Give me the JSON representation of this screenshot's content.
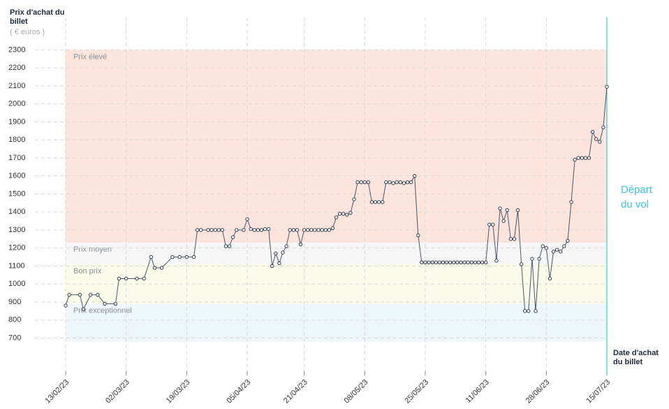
{
  "chart_data": {
    "type": "line",
    "y_axis_title": "Prix d'achat du billet",
    "y_axis_unit": "( € euros )",
    "x_axis_title": "Date d'achat du billet",
    "annotation": "Départ du vol",
    "annotation_x": "15/07/23",
    "annotation_color": "#3ec6e0",
    "bands": [
      {
        "label": "Prix élevé",
        "from": 1230,
        "to": 2300,
        "color": "#fde4dc"
      },
      {
        "label": "Prix moyen",
        "from": 1110,
        "to": 1230,
        "color": "#f6f6f6"
      },
      {
        "label": "Bon prix",
        "from": 890,
        "to": 1110,
        "color": "#fbfbea"
      },
      {
        "label": "Prix exceptionnel",
        "from": 680,
        "to": 890,
        "color": "#eef8fc"
      }
    ],
    "x": [
      "13/02/23",
      "14/02/23",
      "17/02/23",
      "18/02/23",
      "20/02/23",
      "22/02/23",
      "24/02/23",
      "27/02/23",
      "28/02/23",
      "02/03/23",
      "05/03/23",
      "07/03/23",
      "09/03/23",
      "10/03/23",
      "12/03/23",
      "15/03/23",
      "17/03/23",
      "19/03/23",
      "21/03/23",
      "22/03/23",
      "23/03/23",
      "25/03/23",
      "26/03/23",
      "27/03/23",
      "28/03/23",
      "29/03/23",
      "30/03/23",
      "31/03/23",
      "01/04/23",
      "02/04/23",
      "04/04/23",
      "05/04/23",
      "06/04/23",
      "07/04/23",
      "08/04/23",
      "09/04/23",
      "10/04/23",
      "11/04/23",
      "12/04/23",
      "13/04/23",
      "14/04/23",
      "15/04/23",
      "16/04/23",
      "17/04/23",
      "18/04/23",
      "19/04/23",
      "20/04/23",
      "21/04/23",
      "22/04/23",
      "23/04/23",
      "24/04/23",
      "25/04/23",
      "26/04/23",
      "27/04/23",
      "28/04/23",
      "29/04/23",
      "30/04/23",
      "01/05/23",
      "02/05/23",
      "03/05/23",
      "04/05/23",
      "05/05/23",
      "06/05/23",
      "07/05/23",
      "08/05/23",
      "09/05/23",
      "10/05/23",
      "11/05/23",
      "12/05/23",
      "13/05/23",
      "14/05/23",
      "15/05/23",
      "16/05/23",
      "17/05/23",
      "18/05/23",
      "19/05/23",
      "20/05/23",
      "21/05/23",
      "22/05/23",
      "23/05/23",
      "24/05/23",
      "25/05/23",
      "26/05/23",
      "27/05/23",
      "28/05/23",
      "29/05/23",
      "30/05/23",
      "31/05/23",
      "01/06/23",
      "02/06/23",
      "03/06/23",
      "04/06/23",
      "05/06/23",
      "06/06/23",
      "07/06/23",
      "08/06/23",
      "09/06/23",
      "10/06/23",
      "11/06/23",
      "12/06/23",
      "13/06/23",
      "14/06/23",
      "15/06/23",
      "16/06/23",
      "17/06/23",
      "18/06/23",
      "19/06/23",
      "20/06/23",
      "21/06/23",
      "22/06/23",
      "23/06/23",
      "24/06/23",
      "25/06/23",
      "26/06/23",
      "27/06/23",
      "28/06/23",
      "29/06/23",
      "30/06/23",
      "01/07/23",
      "02/07/23",
      "03/07/23",
      "04/07/23",
      "05/07/23",
      "06/07/23",
      "07/07/23",
      "08/07/23",
      "09/07/23",
      "10/07/23",
      "11/07/23",
      "12/07/23",
      "13/07/23",
      "14/07/23",
      "15/07/23"
    ],
    "series": [
      {
        "name": "Prix",
        "color": "#4a5568",
        "values": [
          880,
          940,
          940,
          860,
          940,
          940,
          890,
          890,
          1030,
          1030,
          1030,
          1030,
          1150,
          1090,
          1090,
          1150,
          1150,
          1150,
          1150,
          1300,
          1300,
          1300,
          1300,
          1300,
          1300,
          1300,
          1210,
          1210,
          1260,
          1300,
          1300,
          1360,
          1305,
          1300,
          1300,
          1300,
          1305,
          1305,
          1100,
          1170,
          1115,
          1175,
          1210,
          1300,
          1300,
          1300,
          1220,
          1300,
          1300,
          1300,
          1300,
          1300,
          1300,
          1300,
          1300,
          1310,
          1370,
          1390,
          1390,
          1385,
          1395,
          1470,
          1565,
          1565,
          1565,
          1565,
          1455,
          1455,
          1455,
          1455,
          1565,
          1565,
          1560,
          1565,
          1565,
          1560,
          1565,
          1565,
          1600,
          1270,
          1120,
          1120,
          1120,
          1120,
          1120,
          1120,
          1120,
          1120,
          1120,
          1120,
          1120,
          1120,
          1120,
          1120,
          1120,
          1120,
          1120,
          1120,
          1120,
          1330,
          1330,
          1130,
          1420,
          1350,
          1410,
          1250,
          1250,
          1410,
          1110,
          850,
          850,
          1140,
          850,
          1140,
          1210,
          1200,
          1030,
          1180,
          1190,
          1180,
          1210,
          1240,
          1455,
          1690,
          1700,
          1700,
          1700,
          1700,
          1845,
          1805,
          1790,
          1870,
          2095
        ]
      }
    ],
    "xlim": [
      "13/02/23",
      "15/07/23"
    ],
    "xticks": [
      "13/02/23",
      "02/03/23",
      "19/03/23",
      "05/04/23",
      "21/04/23",
      "08/05/23",
      "25/05/23",
      "11/06/23",
      "28/06/23",
      "15/07/23"
    ],
    "ylim": [
      500,
      2480
    ],
    "yticks": [
      700,
      800,
      900,
      1000,
      1100,
      1200,
      1300,
      1400,
      1500,
      1600,
      1700,
      1800,
      1900,
      2000,
      2100,
      2200,
      2300
    ],
    "grid": true
  }
}
